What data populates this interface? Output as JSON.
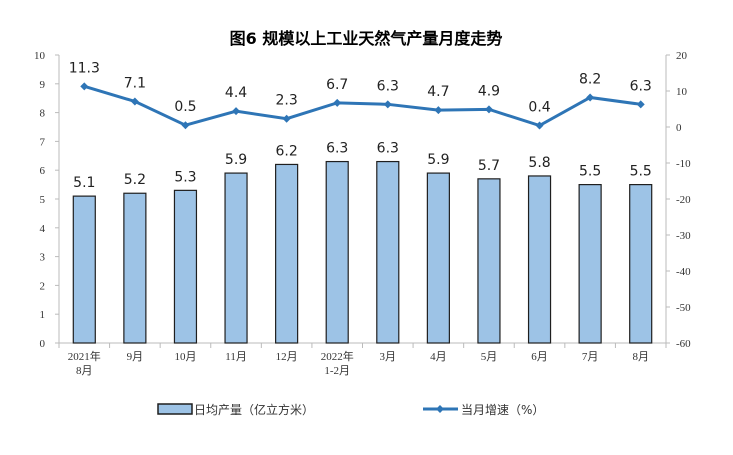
{
  "chart_data": {
    "type": "bar+line",
    "title": "图6  规模以上工业天然气产量月度走势",
    "categories": [
      [
        "2021年",
        "8月"
      ],
      [
        "9月"
      ],
      [
        "10月"
      ],
      [
        "11月"
      ],
      [
        "12月"
      ],
      [
        "2022年",
        "1-2月"
      ],
      [
        "3月"
      ],
      [
        "4月"
      ],
      [
        "5月"
      ],
      [
        "6月"
      ],
      [
        "7月"
      ],
      [
        "8月"
      ]
    ],
    "series": [
      {
        "name": "日均产量（亿立方米）",
        "type": "bar",
        "axis": "left",
        "color": "#9DC3E6",
        "border": "#1F1F1F",
        "values": [
          5.1,
          5.2,
          5.3,
          5.9,
          6.2,
          6.3,
          6.3,
          5.9,
          5.7,
          5.8,
          5.5,
          5.5
        ]
      },
      {
        "name": "当月增速（%）",
        "type": "line",
        "axis": "right",
        "color": "#2E75B6",
        "values": [
          11.3,
          7.1,
          0.5,
          4.4,
          2.3,
          6.7,
          6.3,
          4.7,
          4.9,
          0.4,
          8.2,
          6.3
        ]
      }
    ],
    "left_axis": {
      "min": 0,
      "max": 10,
      "step": 1
    },
    "right_axis": {
      "min": -60,
      "max": 20,
      "step": 10
    },
    "grid": false,
    "legend": "bottom"
  }
}
